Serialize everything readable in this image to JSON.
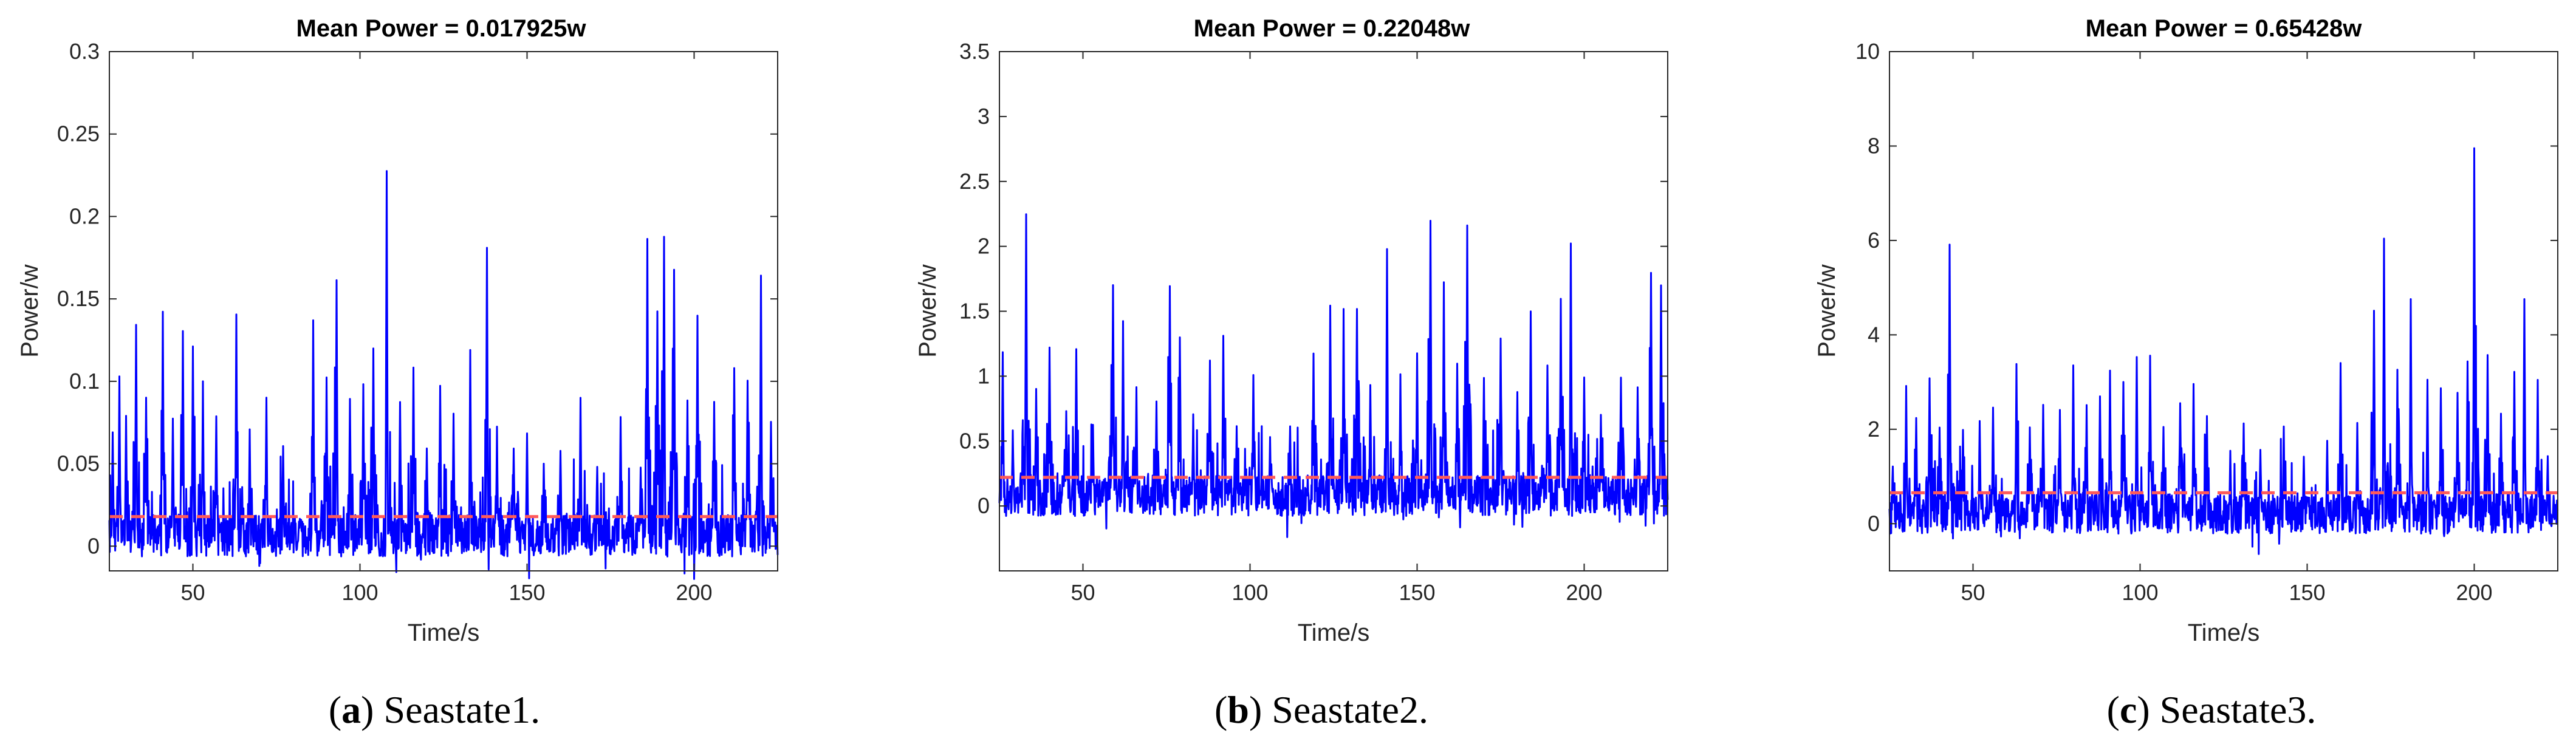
{
  "chart_data": [
    {
      "type": "line",
      "title": "Mean Power = 0.017925w",
      "xlabel": "Time/s",
      "ylabel": "Power/w",
      "caption_letter": "a",
      "caption_text": " Seastate1.",
      "xlim": [
        25,
        225
      ],
      "ylim": [
        -0.015,
        0.3
      ],
      "xticks": [
        50,
        100,
        150,
        200
      ],
      "xtick_labels": [
        "50",
        "100",
        "150",
        "200"
      ],
      "yticks": [
        0,
        0.05,
        0.1,
        0.15,
        0.2,
        0.25,
        0.3
      ],
      "ytick_labels": [
        "0",
        "0.05",
        "0.1",
        "0.15",
        "0.2",
        "0.25",
        "0.3"
      ],
      "mean": 0.017925,
      "baseline_noise": 0.018,
      "peaks": [
        [
          26,
          0.07
        ],
        [
          28,
          0.102
        ],
        [
          30,
          0.08
        ],
        [
          33,
          0.136
        ],
        [
          36,
          0.09
        ],
        [
          41,
          0.142
        ],
        [
          44,
          0.08
        ],
        [
          47,
          0.13
        ],
        [
          50,
          0.12
        ],
        [
          53,
          0.1
        ],
        [
          57,
          0.08
        ],
        [
          63,
          0.138
        ],
        [
          67,
          0.07
        ],
        [
          72,
          0.09
        ],
        [
          77,
          0.06
        ],
        [
          86,
          0.135
        ],
        [
          90,
          0.1
        ],
        [
          93,
          0.161
        ],
        [
          97,
          0.09
        ],
        [
          101,
          0.1
        ],
        [
          104,
          0.12
        ],
        [
          108,
          0.225
        ],
        [
          112,
          0.09
        ],
        [
          116,
          0.11
        ],
        [
          120,
          0.06
        ],
        [
          124,
          0.1
        ],
        [
          128,
          0.08
        ],
        [
          133,
          0.118
        ],
        [
          138,
          0.183
        ],
        [
          141,
          0.07
        ],
        [
          146,
          0.06
        ],
        [
          150,
          0.07
        ],
        [
          155,
          0.05
        ],
        [
          160,
          0.06
        ],
        [
          166,
          0.09
        ],
        [
          171,
          0.05
        ],
        [
          178,
          0.08
        ],
        [
          184,
          0.05
        ],
        [
          186,
          0.185
        ],
        [
          189,
          0.14
        ],
        [
          191,
          0.19
        ],
        [
          194,
          0.17
        ],
        [
          198,
          0.09
        ],
        [
          201,
          0.14
        ],
        [
          206,
          0.09
        ],
        [
          212,
          0.11
        ],
        [
          216,
          0.1
        ],
        [
          220,
          0.165
        ],
        [
          223,
          0.078
        ]
      ]
    },
    {
      "type": "line",
      "title": "Mean Power = 0.22048w",
      "xlabel": "Time/s",
      "ylabel": "Power/w",
      "caption_letter": "b",
      "caption_text": " Seastate2.",
      "xlim": [
        25,
        225
      ],
      "ylim": [
        -0.5,
        3.5
      ],
      "xticks": [
        50,
        100,
        150,
        200
      ],
      "xtick_labels": [
        "50",
        "100",
        "150",
        "200"
      ],
      "yticks": [
        0,
        0.5,
        1,
        1.5,
        2,
        2.5,
        3,
        3.5
      ],
      "ytick_labels": [
        "0",
        "0.5",
        "1",
        "1.5",
        "2",
        "2.5",
        "3",
        "3.5"
      ],
      "mean": 0.22048,
      "baseline_noise": 0.22,
      "peaks": [
        [
          26,
          1.18
        ],
        [
          29,
          0.6
        ],
        [
          33,
          2.27
        ],
        [
          36,
          0.9
        ],
        [
          40,
          1.25
        ],
        [
          45,
          0.7
        ],
        [
          48,
          1.2
        ],
        [
          53,
          0.6
        ],
        [
          59,
          1.72
        ],
        [
          62,
          1.4
        ],
        [
          66,
          0.9
        ],
        [
          72,
          0.8
        ],
        [
          76,
          1.7
        ],
        [
          79,
          1.3
        ],
        [
          83,
          0.7
        ],
        [
          88,
          1.1
        ],
        [
          92,
          1.3
        ],
        [
          96,
          0.6
        ],
        [
          101,
          1.0
        ],
        [
          106,
          0.5
        ],
        [
          112,
          0.6
        ],
        [
          119,
          1.2
        ],
        [
          124,
          1.55
        ],
        [
          128,
          1.5
        ],
        [
          132,
          1.55
        ],
        [
          136,
          0.9
        ],
        [
          141,
          1.97
        ],
        [
          145,
          1.0
        ],
        [
          150,
          1.2
        ],
        [
          154,
          2.2
        ],
        [
          158,
          1.7
        ],
        [
          162,
          1.1
        ],
        [
          165,
          2.15
        ],
        [
          170,
          1.0
        ],
        [
          175,
          1.3
        ],
        [
          180,
          0.9
        ],
        [
          184,
          1.5
        ],
        [
          189,
          1.1
        ],
        [
          193,
          1.6
        ],
        [
          196,
          2.0
        ],
        [
          200,
          1.0
        ],
        [
          205,
          0.7
        ],
        [
          211,
          1.0
        ],
        [
          216,
          0.9
        ],
        [
          220,
          1.8
        ],
        [
          223,
          1.7
        ]
      ]
    },
    {
      "type": "line",
      "title": "Mean Power = 0.65428w",
      "xlabel": "Time/s",
      "ylabel": "Power/w",
      "caption_letter": "c",
      "caption_text": " Seastate3.",
      "xlim": [
        25,
        225
      ],
      "ylim": [
        -1,
        10
      ],
      "xticks": [
        50,
        100,
        150,
        200
      ],
      "xtick_labels": [
        "50",
        "100",
        "150",
        "200"
      ],
      "yticks": [
        0,
        2,
        4,
        6,
        8,
        10
      ],
      "ytick_labels": [
        "0",
        "2",
        "4",
        "6",
        "8",
        "10"
      ],
      "mean": 0.65428,
      "baseline_noise": 0.6,
      "peaks": [
        [
          26,
          1.3
        ],
        [
          30,
          2.9
        ],
        [
          33,
          2.3
        ],
        [
          37,
          3.1
        ],
        [
          40,
          2.0
        ],
        [
          43,
          5.9
        ],
        [
          47,
          2.0
        ],
        [
          52,
          2.2
        ],
        [
          56,
          2.5
        ],
        [
          63,
          3.3
        ],
        [
          67,
          2.1
        ],
        [
          71,
          2.5
        ],
        [
          76,
          2.4
        ],
        [
          80,
          3.3
        ],
        [
          84,
          2.5
        ],
        [
          88,
          2.7
        ],
        [
          91,
          3.2
        ],
        [
          95,
          3.0
        ],
        [
          99,
          3.5
        ],
        [
          103,
          3.6
        ],
        [
          107,
          2.1
        ],
        [
          112,
          2.6
        ],
        [
          116,
          3.0
        ],
        [
          120,
          2.2
        ],
        [
          127,
          1.5
        ],
        [
          131,
          2.2
        ],
        [
          136,
          1.6
        ],
        [
          143,
          2.0
        ],
        [
          149,
          1.4
        ],
        [
          156,
          1.7
        ],
        [
          160,
          3.4
        ],
        [
          165,
          2.2
        ],
        [
          170,
          4.5
        ],
        [
          173,
          6.0
        ],
        [
          177,
          3.2
        ],
        [
          181,
          4.7
        ],
        [
          186,
          3.0
        ],
        [
          190,
          2.8
        ],
        [
          195,
          2.7
        ],
        [
          198,
          3.5
        ],
        [
          200,
          7.9
        ],
        [
          204,
          3.5
        ],
        [
          208,
          2.3
        ],
        [
          212,
          3.2
        ],
        [
          215,
          4.8
        ],
        [
          219,
          3.0
        ],
        [
          222,
          1.4
        ]
      ]
    }
  ]
}
